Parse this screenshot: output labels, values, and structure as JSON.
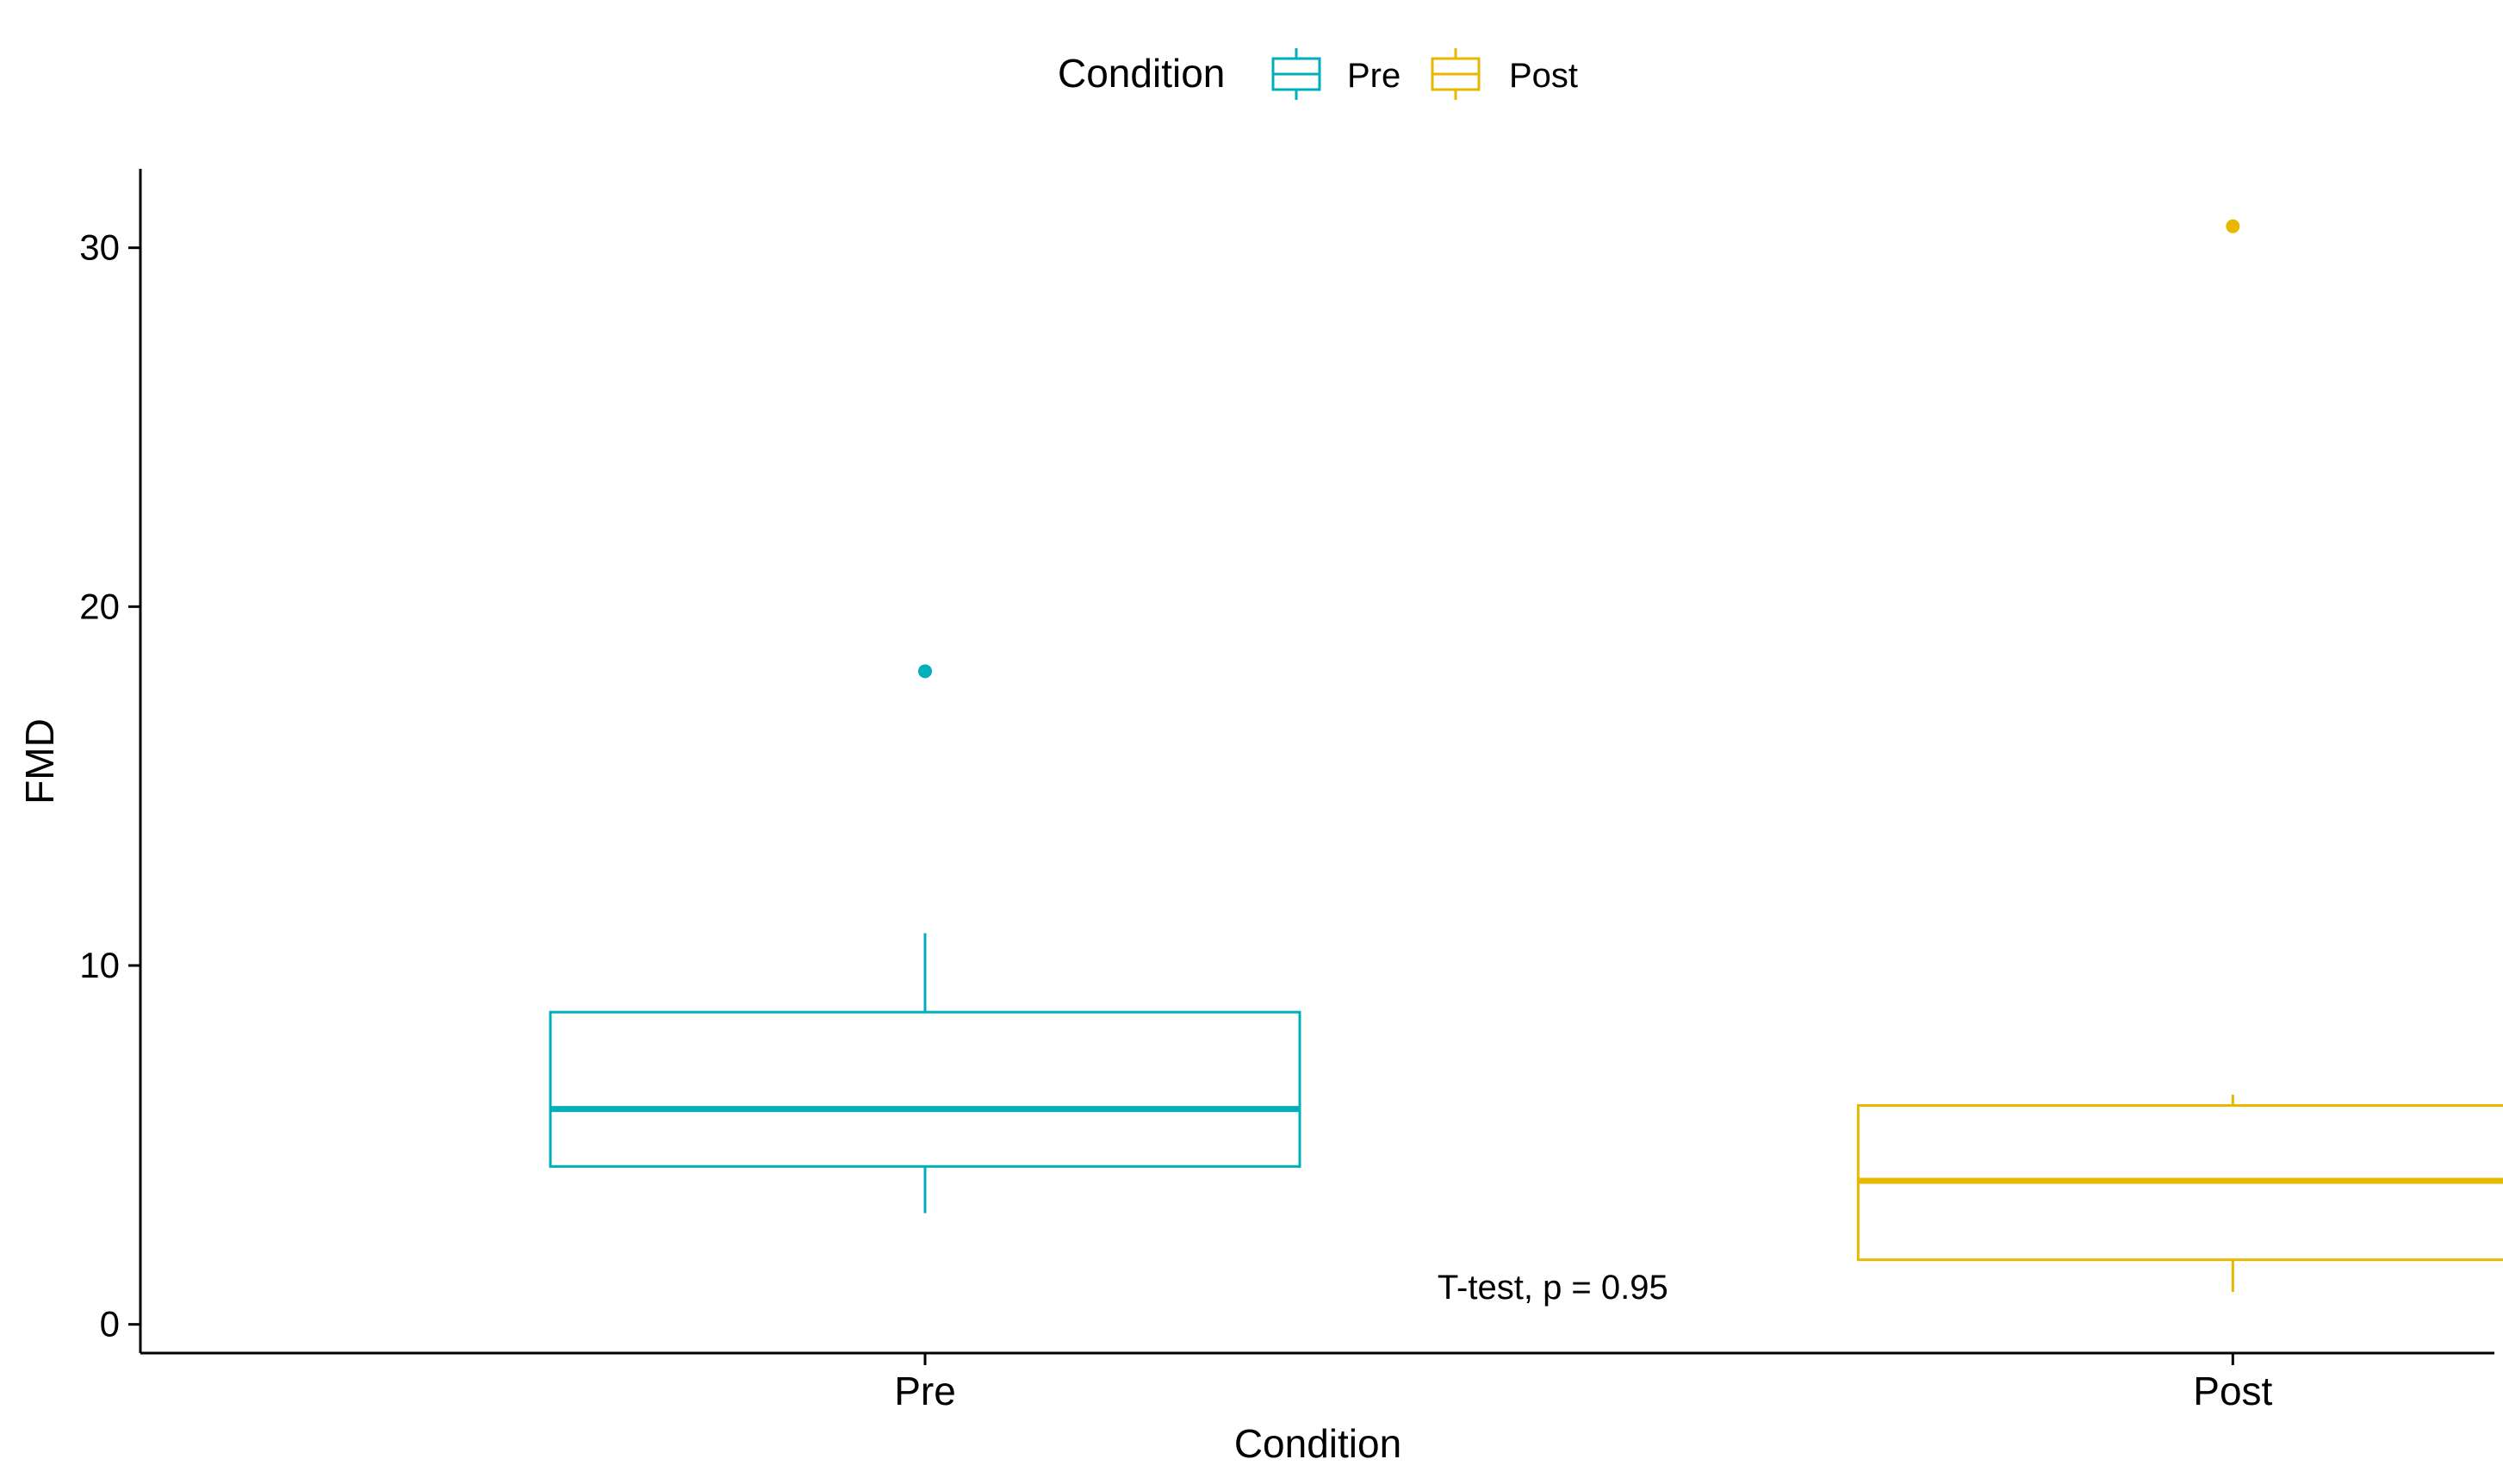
{
  "chart_data": {
    "type": "box",
    "title": "",
    "xlabel": "Condition",
    "ylabel": "FMD",
    "ylim": [
      -0.8,
      32.2
    ],
    "yticks": [
      0,
      10,
      20,
      30
    ],
    "ytick_labels": [
      "0",
      "10",
      "20",
      "30"
    ],
    "categories": [
      "Pre",
      "Post"
    ],
    "grid": false,
    "legend": {
      "title": "Condition",
      "placement": "top",
      "entries": [
        "Pre",
        "Post"
      ]
    },
    "series": [
      {
        "name": "Pre",
        "color": "#00AFBB",
        "whisker_low": 3.1,
        "q1": 4.4,
        "median": 6.0,
        "q3": 8.7,
        "whisker_high": 10.9,
        "outliers": [
          18.2
        ]
      },
      {
        "name": "Post",
        "color": "#E7B800",
        "whisker_low": 0.9,
        "q1": 1.8,
        "median": 4.0,
        "q3": 6.1,
        "whisker_high": 6.4,
        "outliers": [
          30.6
        ]
      }
    ],
    "annotations": [
      {
        "text": "T-test, p = 0.95",
        "x_category_position": 1.48,
        "y": 1.05
      }
    ]
  }
}
